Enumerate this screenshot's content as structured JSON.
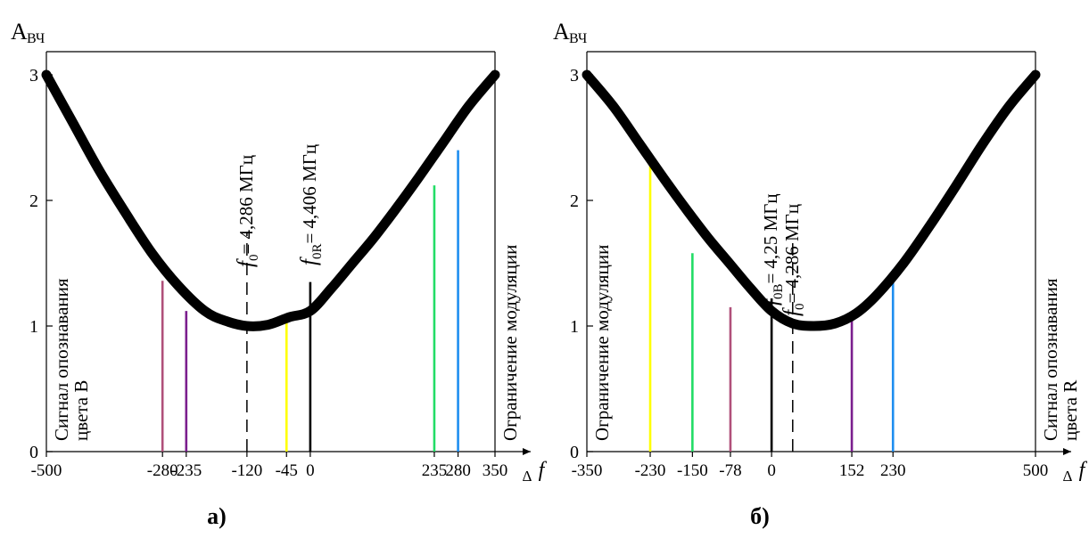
{
  "chart_data": [
    {
      "type": "line",
      "panel_label": "а)",
      "ylabel_main": "A",
      "ylabel_sub": "ВЧ",
      "xlabel_delta": "Δ",
      "xlabel_f": "f",
      "xlim": [
        -500,
        350
      ],
      "ylim": [
        0,
        3
      ],
      "ytick_labels": [
        "0",
        "1",
        "2",
        "3"
      ],
      "ytick_values": [
        0,
        1,
        2,
        3
      ],
      "xtick_labels": [
        "-500",
        "-280",
        "-235",
        "-120",
        "-45",
        "0",
        "235",
        "280",
        "350"
      ],
      "xtick_values": [
        -500,
        -280,
        -235,
        -120,
        -45,
        0,
        235,
        280,
        350
      ],
      "curve": {
        "x": [
          -500,
          -450,
          -400,
          -350,
          -300,
          -250,
          -200,
          -160,
          -120,
          -80,
          -40,
          0,
          40,
          80,
          120,
          160,
          200,
          250,
          300,
          350
        ],
        "y": [
          3.0,
          2.62,
          2.24,
          1.9,
          1.58,
          1.32,
          1.12,
          1.04,
          1.0,
          1.01,
          1.07,
          1.12,
          1.3,
          1.5,
          1.7,
          1.92,
          2.15,
          2.45,
          2.75,
          3.0
        ]
      },
      "verticals": [
        {
          "x": -280,
          "y": 1.36,
          "color": "#b0507a"
        },
        {
          "x": -235,
          "y": 1.12,
          "color": "#7b1e8e"
        },
        {
          "x": -45,
          "y": 1.03,
          "color": "#ffff00"
        },
        {
          "x": 0,
          "y": 1.35,
          "color": "#000000"
        },
        {
          "x": 235,
          "y": 2.12,
          "color": "#22dd66"
        },
        {
          "x": 280,
          "y": 2.4,
          "color": "#1e8ef0"
        }
      ],
      "dashed": {
        "x": -120,
        "y": 1.75
      },
      "annotations": [
        {
          "var": "f",
          "sub": "0",
          "text": "= 4,286  МГц",
          "x": -120
        },
        {
          "var": "f",
          "sub": "0R",
          "text": "= 4,406 МГц",
          "x": 0
        }
      ],
      "left_label": [
        "Сигнал опознавания",
        "цвета В"
      ],
      "right_label": [
        "Ограничение модуляции"
      ]
    },
    {
      "type": "line",
      "panel_label": "б)",
      "ylabel_main": "A",
      "ylabel_sub": "ВЧ",
      "xlabel_delta": "Δ",
      "xlabel_f": "f",
      "xlim": [
        -350,
        500
      ],
      "ylim": [
        0,
        3
      ],
      "ytick_labels": [
        "0",
        "1",
        "2",
        "3"
      ],
      "ytick_values": [
        0,
        1,
        2,
        3
      ],
      "xtick_labels": [
        "-350",
        "-230",
        "-150",
        "-78",
        "0",
        "152",
        "230",
        "500"
      ],
      "xtick_values": [
        -350,
        -230,
        -150,
        -78,
        0,
        152,
        230,
        500
      ],
      "curve": {
        "x": [
          -350,
          -300,
          -250,
          -200,
          -160,
          -120,
          -80,
          -40,
          0,
          40,
          80,
          120,
          160,
          200,
          250,
          300,
          350,
          400,
          450,
          500
        ],
        "y": [
          3.0,
          2.75,
          2.45,
          2.15,
          1.92,
          1.7,
          1.5,
          1.3,
          1.12,
          1.02,
          1.0,
          1.02,
          1.1,
          1.25,
          1.5,
          1.8,
          2.12,
          2.45,
          2.75,
          3.0
        ]
      },
      "verticals": [
        {
          "x": -230,
          "y": 2.32,
          "color": "#ffff00"
        },
        {
          "x": -150,
          "y": 1.58,
          "color": "#22dd66"
        },
        {
          "x": -78,
          "y": 1.15,
          "color": "#b0507a"
        },
        {
          "x": 0,
          "y": 1.22,
          "color": "#000000"
        },
        {
          "x": 152,
          "y": 1.1,
          "color": "#7b1e8e"
        },
        {
          "x": 230,
          "y": 1.45,
          "color": "#1e8ef0"
        }
      ],
      "dashed": {
        "x": 40,
        "y": 1.7
      },
      "annotations": [
        {
          "var": "f",
          "sub": "0B",
          "text": "= 4,25 МГц",
          "x": 0
        },
        {
          "var": "f",
          "sub": "0",
          "text": "= 4,286  МГц",
          "x": 40
        }
      ],
      "left_label": [
        "Ограничение модуляции"
      ],
      "right_label": [
        "Сигнал  опознавания",
        "цвета R"
      ]
    }
  ]
}
